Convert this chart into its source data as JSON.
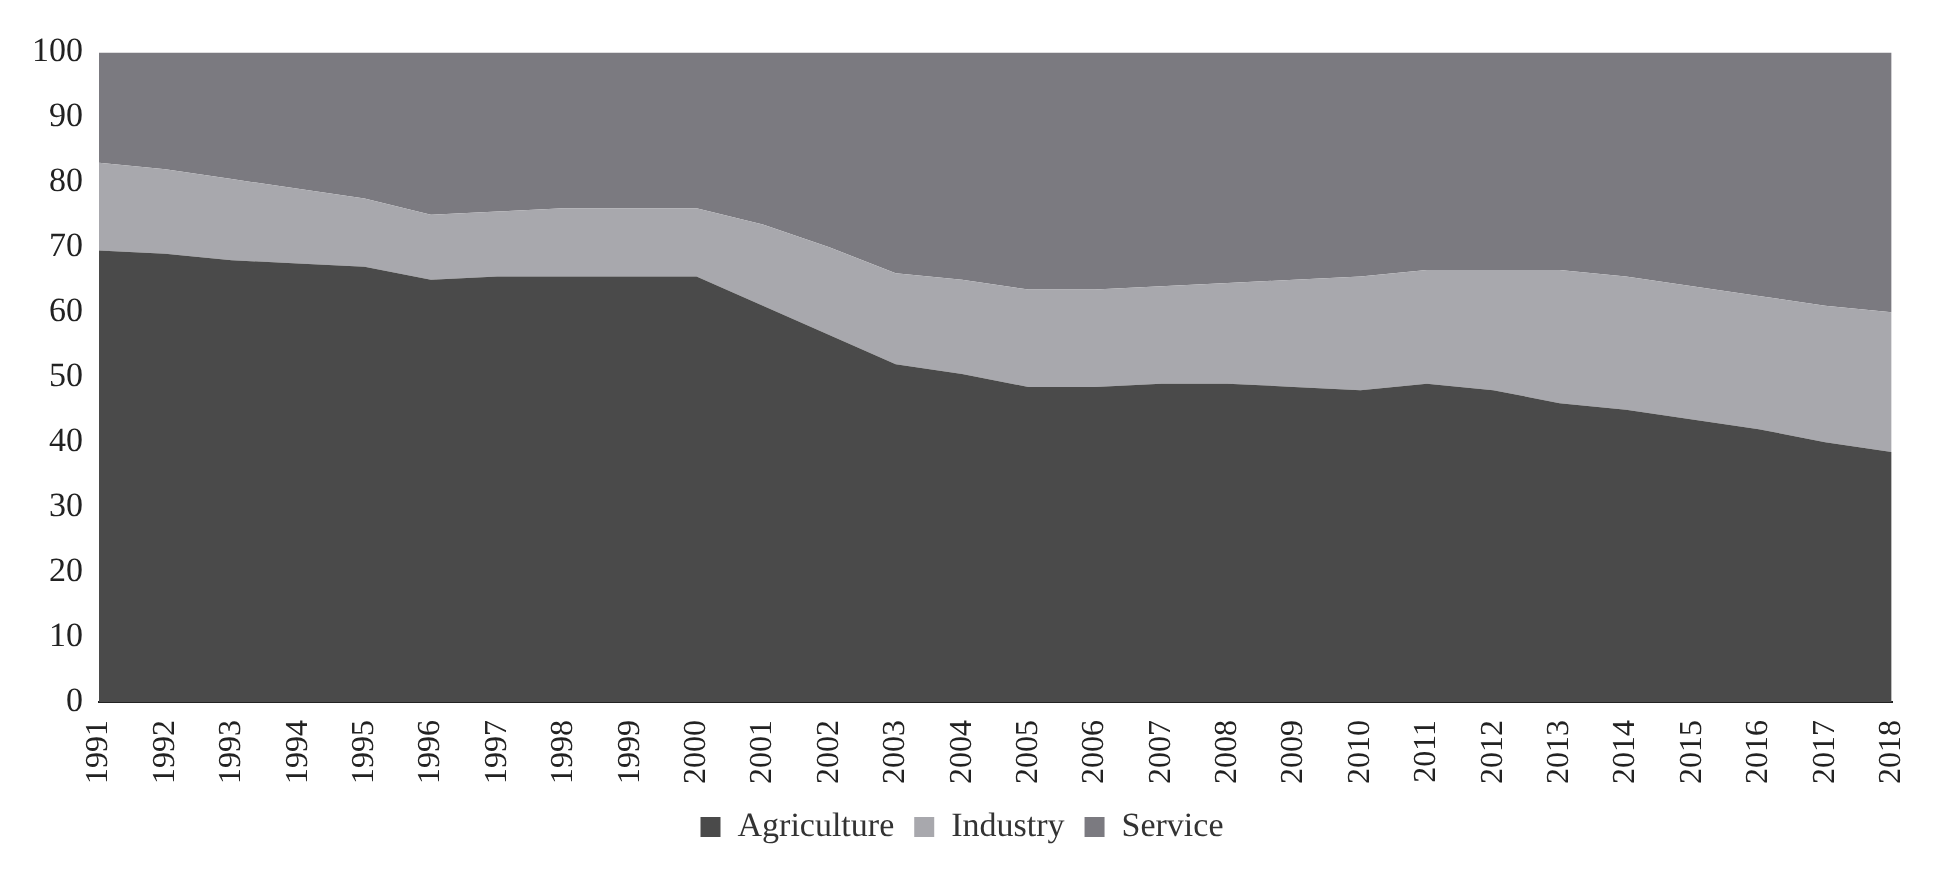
{
  "chart_data": {
    "type": "area",
    "stacked": true,
    "categories": [
      "1991",
      "1992",
      "1993",
      "1994",
      "1995",
      "1996",
      "1997",
      "1998",
      "1999",
      "2000",
      "2001",
      "2002",
      "2003",
      "2004",
      "2005",
      "2006",
      "2007",
      "2008",
      "2009",
      "2010",
      "2011",
      "2012",
      "2013",
      "2014",
      "2015",
      "2016",
      "2017",
      "2018"
    ],
    "series": [
      {
        "name": "Agriculture",
        "color": "#4a4a4a",
        "values": [
          69.5,
          69,
          68,
          67.5,
          67,
          65,
          65.5,
          65.5,
          65.5,
          65.5,
          61,
          56.5,
          52,
          50.5,
          48.5,
          48.5,
          49,
          49,
          48.5,
          48,
          49,
          48,
          46,
          45,
          43.5,
          42,
          40,
          38.5
        ]
      },
      {
        "name": "Industry",
        "color": "#a8a8ad",
        "values": [
          13.5,
          13,
          12.5,
          11.5,
          10.5,
          10,
          10,
          10.5,
          10.5,
          10.5,
          12.5,
          13.5,
          14,
          14.5,
          15,
          15,
          15,
          15.5,
          16.5,
          17.5,
          17.5,
          18.5,
          20.5,
          20.5,
          20.5,
          20.5,
          21,
          21.5
        ]
      },
      {
        "name": "Service",
        "color": "#7b7a80",
        "values": [
          17,
          18,
          19.5,
          21,
          22.5,
          25,
          24.5,
          24,
          24,
          24,
          26.5,
          30,
          34,
          35,
          36.5,
          36.5,
          36,
          35.5,
          35,
          34.5,
          33.5,
          33.5,
          33.5,
          34.5,
          36,
          37.5,
          39,
          40
        ]
      }
    ],
    "ylim": [
      0,
      100
    ],
    "yticks": [
      0,
      10,
      20,
      30,
      40,
      50,
      60,
      70,
      80,
      90,
      100
    ],
    "grid": false,
    "legend": "bottom"
  }
}
